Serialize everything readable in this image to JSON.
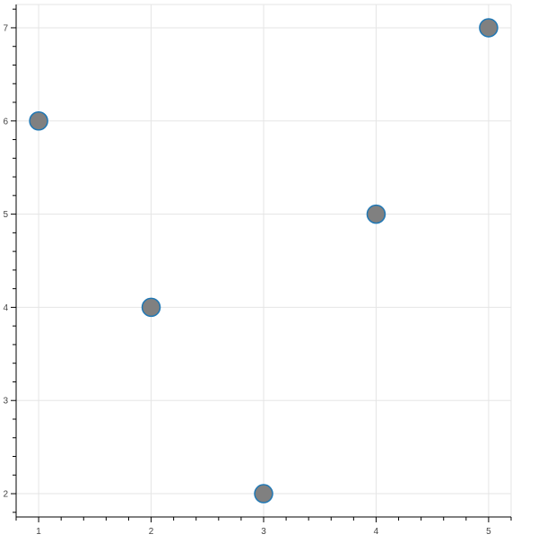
{
  "chart_data": {
    "type": "scatter",
    "title": "",
    "xlabel": "",
    "ylabel": "",
    "x": [
      1,
      2,
      3,
      4,
      5
    ],
    "y": [
      6,
      4,
      2,
      5,
      7
    ],
    "xlim": [
      0.8,
      5.2
    ],
    "ylim": [
      1.75,
      7.25
    ],
    "xticks": [
      "1",
      "2",
      "3",
      "4",
      "5"
    ],
    "yticks": [
      "2",
      "3",
      "4",
      "5",
      "6",
      "7"
    ],
    "grid": true,
    "marker": "circle",
    "colors": {
      "fill": "#808080",
      "stroke": "#1f77b4",
      "grid": "#e5e5e5",
      "axis": "#000000"
    }
  }
}
